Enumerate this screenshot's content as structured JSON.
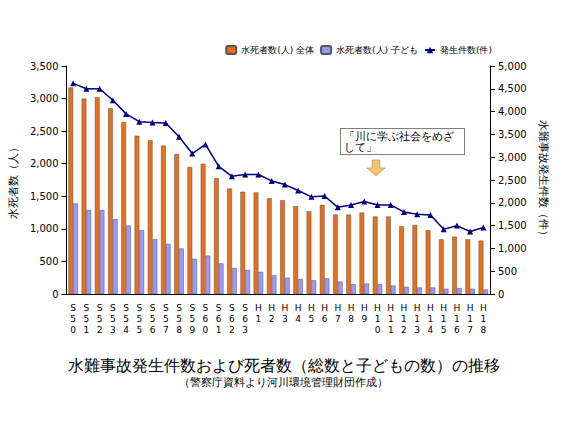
{
  "chart_data": {
    "type": "bar",
    "title": "水難事故発生件数および死者数（総数と子どもの数）の推移",
    "subtitle": "（警察庁資料より河川環境管理財団作成）",
    "annotation": "「川に学ぶ社会をめざして」",
    "y_label": "水死者数（人）",
    "y2_label": "水難事故発生件数（件）",
    "categories": [
      "S50",
      "S51",
      "S52",
      "S53",
      "S54",
      "S55",
      "S56",
      "S57",
      "S58",
      "S59",
      "S60",
      "S61",
      "S62",
      "S63",
      "H1",
      "H2",
      "H3",
      "H4",
      "H5",
      "H6",
      "H7",
      "H8",
      "H9",
      "H10",
      "H11",
      "H12",
      "H13",
      "H14",
      "H15",
      "H16",
      "H17",
      "H18"
    ],
    "series": [
      {
        "name": "水死者数(人) 全体",
        "type": "bar",
        "color": "#E8701A",
        "values": [
          3170,
          3000,
          3020,
          2850,
          2640,
          2430,
          2360,
          2280,
          2150,
          1950,
          2000,
          1780,
          1620,
          1570,
          1560,
          1470,
          1440,
          1350,
          1270,
          1370,
          1220,
          1220,
          1250,
          1190,
          1190,
          1040,
          1060,
          980,
          840,
          880,
          840,
          820
        ]
      },
      {
        "name": "水死者数(人) 子ども",
        "type": "bar",
        "color": "#9999FF",
        "values": [
          1390,
          1290,
          1290,
          1150,
          1050,
          980,
          840,
          770,
          700,
          540,
          590,
          470,
          400,
          370,
          340,
          290,
          250,
          230,
          210,
          240,
          190,
          150,
          160,
          150,
          130,
          110,
          100,
          100,
          80,
          90,
          80,
          70
        ]
      },
      {
        "name": "発生件数(件)",
        "type": "line",
        "color": "#000080",
        "marker": "triangle",
        "axis": "y2",
        "values": [
          4620,
          4500,
          4500,
          4250,
          3950,
          3780,
          3760,
          3750,
          3450,
          3080,
          3280,
          2800,
          2580,
          2620,
          2620,
          2480,
          2400,
          2270,
          2130,
          2150,
          1900,
          1950,
          2030,
          1950,
          1950,
          1800,
          1750,
          1730,
          1420,
          1500,
          1370,
          1460
        ]
      }
    ],
    "ylim": [
      0,
      3500
    ],
    "yticks": [
      0,
      500,
      {
        "value": 1000,
        "label": "1,000"
      },
      {
        "value": 1500,
        "label": "1,500"
      },
      {
        "value": 2000,
        "label": "2,000"
      },
      {
        "value": 2500,
        "label": "2,500"
      },
      {
        "value": 3000,
        "label": "3,000"
      },
      {
        "value": 3500,
        "label": "3,500"
      }
    ],
    "y2lim": [
      0,
      5000
    ],
    "y2ticks": [
      0,
      500,
      {
        "value": 1000,
        "label": "1,000"
      },
      {
        "value": 1500,
        "label": "1,500"
      },
      {
        "value": 2000,
        "label": "2,000"
      },
      {
        "value": 2500,
        "label": "2,500"
      },
      {
        "value": 3000,
        "label": "3,000"
      },
      {
        "value": 3500,
        "label": "3,500"
      },
      {
        "value": 4000,
        "label": "4,000"
      },
      {
        "value": 4500,
        "label": "4,500"
      },
      {
        "value": 5000,
        "label": "5,000"
      }
    ],
    "grid": false,
    "legend": "top"
  }
}
